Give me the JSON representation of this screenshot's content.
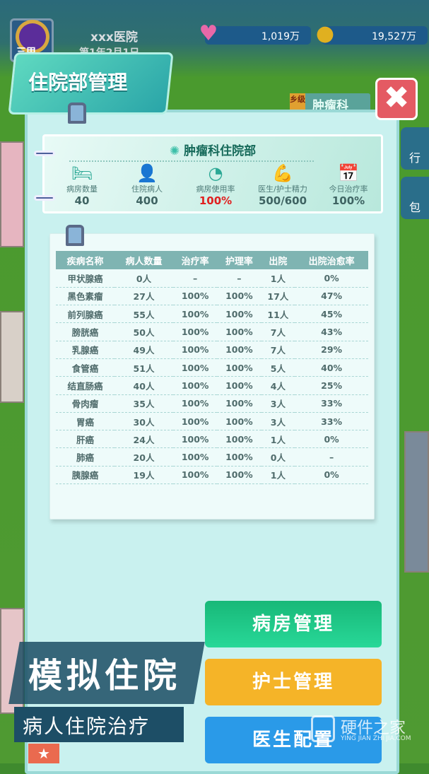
{
  "header": {
    "hospital_name": "xxx医院",
    "date": "第1年2月1日",
    "rank": "三甲",
    "hearts": "1,019万",
    "coins": "19,527万"
  },
  "colors": {
    "accent": "#2aa5a8",
    "highlight": "#e02020",
    "close": "#e45a63",
    "green_button": "#22c98a",
    "yellow_button": "#f5b428",
    "blue_button": "#2a9ae8"
  },
  "title": "住院部管理",
  "close_icon": "close-x-icon",
  "map_tag": {
    "level": "乡级",
    "dept": "肿瘤科"
  },
  "side": {
    "item1": "行",
    "item2": "包"
  },
  "info": {
    "title": "肿瘤科住院部",
    "stats": [
      {
        "label": "病房数量",
        "value": "40",
        "icon": "bed-icon"
      },
      {
        "label": "住院病人",
        "value": "400",
        "icon": "patient-iv-icon"
      },
      {
        "label": "病房使用率",
        "value": "100%",
        "icon": "pie-chart-icon"
      },
      {
        "label": "医生/护士精力",
        "value": "500/600",
        "icon": "muscle-icon"
      },
      {
        "label": "今日治疗率",
        "value": "100%",
        "icon": "calendar-icon"
      }
    ]
  },
  "table": {
    "headers": [
      "疾病名称",
      "病人数量",
      "治疗率",
      "护理率",
      "出院",
      "出院治愈率"
    ],
    "rows": [
      [
        "甲状腺癌",
        "0人",
        "–",
        "–",
        "1人",
        "0%"
      ],
      [
        "黑色素瘤",
        "27人",
        "100%",
        "100%",
        "17人",
        "47%"
      ],
      [
        "前列腺癌",
        "55人",
        "100%",
        "100%",
        "11人",
        "45%"
      ],
      [
        "膀胱癌",
        "50人",
        "100%",
        "100%",
        "7人",
        "43%"
      ],
      [
        "乳腺癌",
        "49人",
        "100%",
        "100%",
        "7人",
        "29%"
      ],
      [
        "食管癌",
        "51人",
        "100%",
        "100%",
        "5人",
        "40%"
      ],
      [
        "结直肠癌",
        "40人",
        "100%",
        "100%",
        "4人",
        "25%"
      ],
      [
        "骨肉瘤",
        "35人",
        "100%",
        "100%",
        "3人",
        "33%"
      ],
      [
        "胃癌",
        "30人",
        "100%",
        "100%",
        "3人",
        "33%"
      ],
      [
        "肝癌",
        "24人",
        "100%",
        "100%",
        "1人",
        "0%"
      ],
      [
        "肺癌",
        "20人",
        "100%",
        "100%",
        "0人",
        "–"
      ],
      [
        "胰腺癌",
        "19人",
        "100%",
        "100%",
        "1人",
        "0%"
      ]
    ]
  },
  "buttons": {
    "ward": "病房管理",
    "nurse": "护士管理",
    "doctor": "医生配置"
  },
  "promo": {
    "title": "模拟住院",
    "subtitle": "病人住院治疗"
  },
  "watermark": {
    "name": "硬件之家",
    "url": "YING JIAN ZHI JIA.COM"
  }
}
